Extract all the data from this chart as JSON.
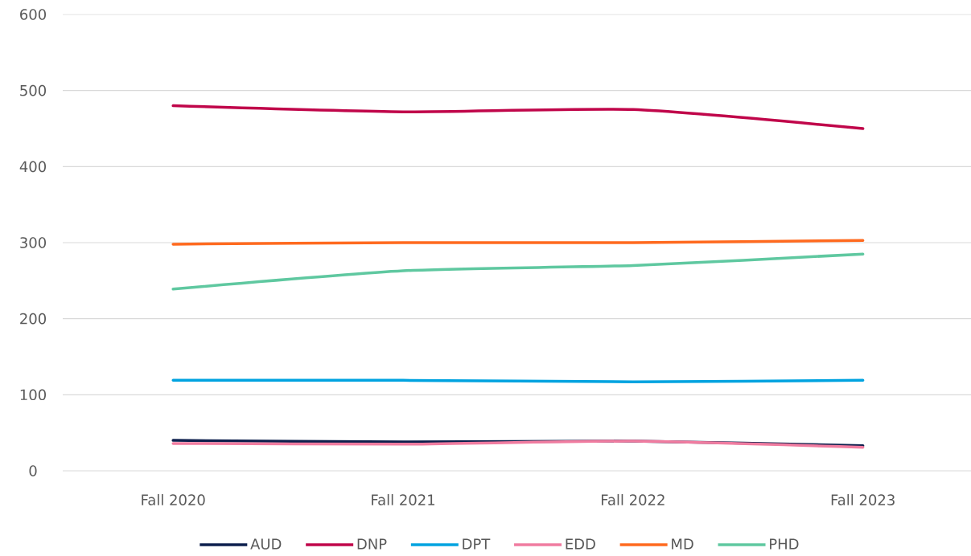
{
  "chart_data": {
    "type": "line",
    "categories": [
      "Fall 2020",
      "Fall 2021",
      "Fall 2022",
      "Fall 2023"
    ],
    "series": [
      {
        "name": "AUD",
        "color": "#0d1f4d",
        "values": [
          40,
          38,
          39,
          33
        ]
      },
      {
        "name": "DNP",
        "color": "#c0064a",
        "values": [
          480,
          472,
          475,
          450
        ]
      },
      {
        "name": "DPT",
        "color": "#00a3e0",
        "values": [
          119,
          119,
          117,
          119
        ]
      },
      {
        "name": "EDD",
        "color": "#f07ca0",
        "values": [
          36,
          35,
          39,
          31
        ]
      },
      {
        "name": "MD",
        "color": "#ff6a1f",
        "values": [
          298,
          300,
          300,
          303
        ]
      },
      {
        "name": "PHD",
        "color": "#5fc8a0",
        "values": [
          239,
          263,
          270,
          285
        ]
      }
    ],
    "ylim": [
      0,
      600
    ],
    "yticks": [
      0,
      100,
      200,
      300,
      400,
      500,
      600
    ],
    "grid": "y",
    "legend": "bottom"
  }
}
